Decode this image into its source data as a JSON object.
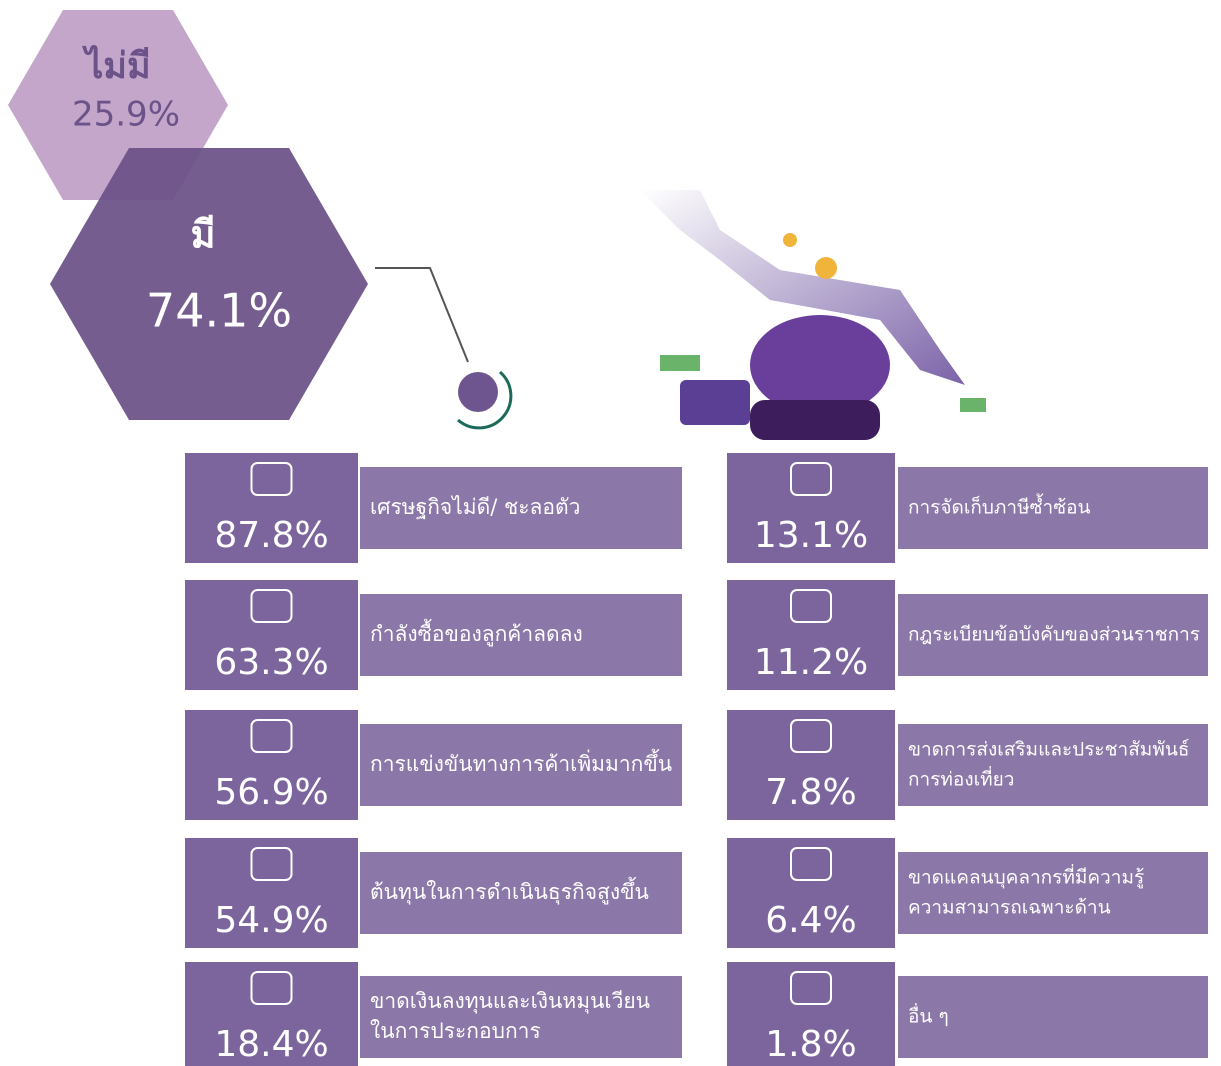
{
  "summary": [
    {
      "label": "ไม่มี",
      "value": "25.9%"
    },
    {
      "label": "มี",
      "value": "74.1%"
    }
  ],
  "items": [
    {
      "value": "87.8%",
      "lines": [
        "เศรษฐกิจไม่ดี/ ชะลอตัว"
      ]
    },
    {
      "value": "63.3%",
      "lines": [
        "กำลังซื้อของลูกค้าลดลง"
      ]
    },
    {
      "value": "56.9%",
      "lines": [
        "การแข่งขันทางการค้าเพิ่มมากขึ้น"
      ]
    },
    {
      "value": "54.9%",
      "lines": [
        "ต้นทุนในการดำเนินธุรกิจสูงขึ้น"
      ]
    },
    {
      "value": "18.4%",
      "lines": [
        "ขาดเงินลงทุนและเงินหมุนเวียน",
        "ในการประกอบการ"
      ]
    },
    {
      "value": "13.1%",
      "lines": [
        "การจัดเก็บภาษีซ้ำซ้อน"
      ]
    },
    {
      "value": "11.2%",
      "lines": [
        "กฎระเบียบข้อบังคับของส่วนราชการ"
      ]
    },
    {
      "value": "7.8%",
      "lines": [
        "ขาดการส่งเสริมและประชาสัมพันธ์",
        "การท่องเที่ยว"
      ]
    },
    {
      "value": "6.4%",
      "lines": [
        "ขาดแคลนบุคลากรที่มีความรู้",
        "ความสามารถเฉพาะด้าน"
      ]
    },
    {
      "value": "1.8%",
      "lines": [
        "อื่น ๆ"
      ]
    }
  ]
}
